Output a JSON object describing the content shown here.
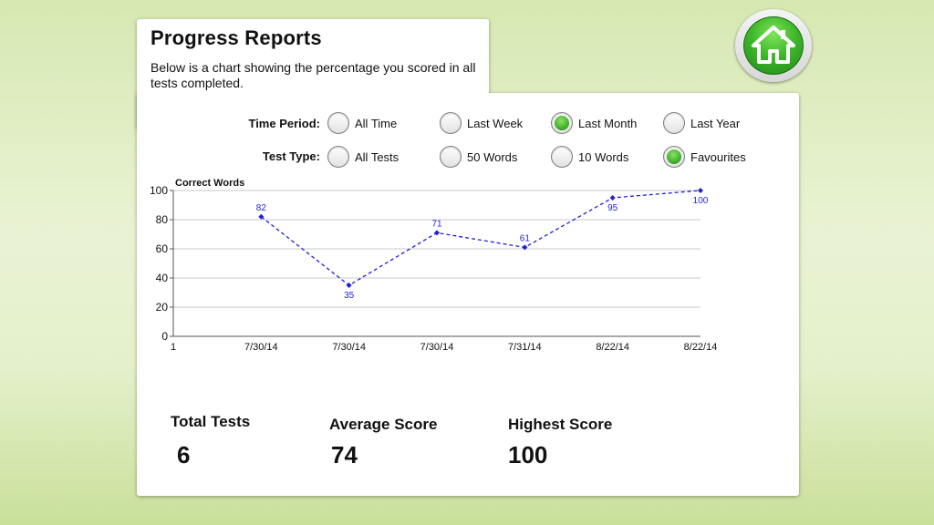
{
  "header": {
    "title": "Progress Reports",
    "description": "Below is a chart showing the percentage you scored in all tests completed.",
    "home_icon": "home-icon"
  },
  "filters": {
    "time_period": {
      "label": "Time Period:",
      "options": [
        "All Time",
        "Last Week",
        "Last Month",
        "Last Year"
      ],
      "selected": "Last Month"
    },
    "test_type": {
      "label": "Test Type:",
      "options": [
        "All Tests",
        "50 Words",
        "10 Words",
        "Favourites"
      ],
      "selected": "Favourites"
    }
  },
  "chart_data": {
    "type": "line",
    "title": "",
    "ylabel": "Correct Words",
    "xlabel": "",
    "x_axis_first_tick": "1",
    "categories": [
      "7/30/14",
      "7/30/14",
      "7/30/14",
      "7/31/14",
      "8/22/14",
      "8/22/14"
    ],
    "series": [
      {
        "values": [
          82,
          35,
          71,
          61,
          95,
          100
        ]
      }
    ],
    "ylim": [
      0,
      100
    ],
    "yticks": [
      0,
      20,
      40,
      60,
      80,
      100
    ],
    "grid": true,
    "line_style": "dashed",
    "color": "#1f1fd6"
  },
  "stats": {
    "total_tests": {
      "label": "Total Tests",
      "value": "6"
    },
    "average_score": {
      "label": "Average Score",
      "value": "74"
    },
    "highest_score": {
      "label": "Highest Score",
      "value": "100"
    }
  }
}
